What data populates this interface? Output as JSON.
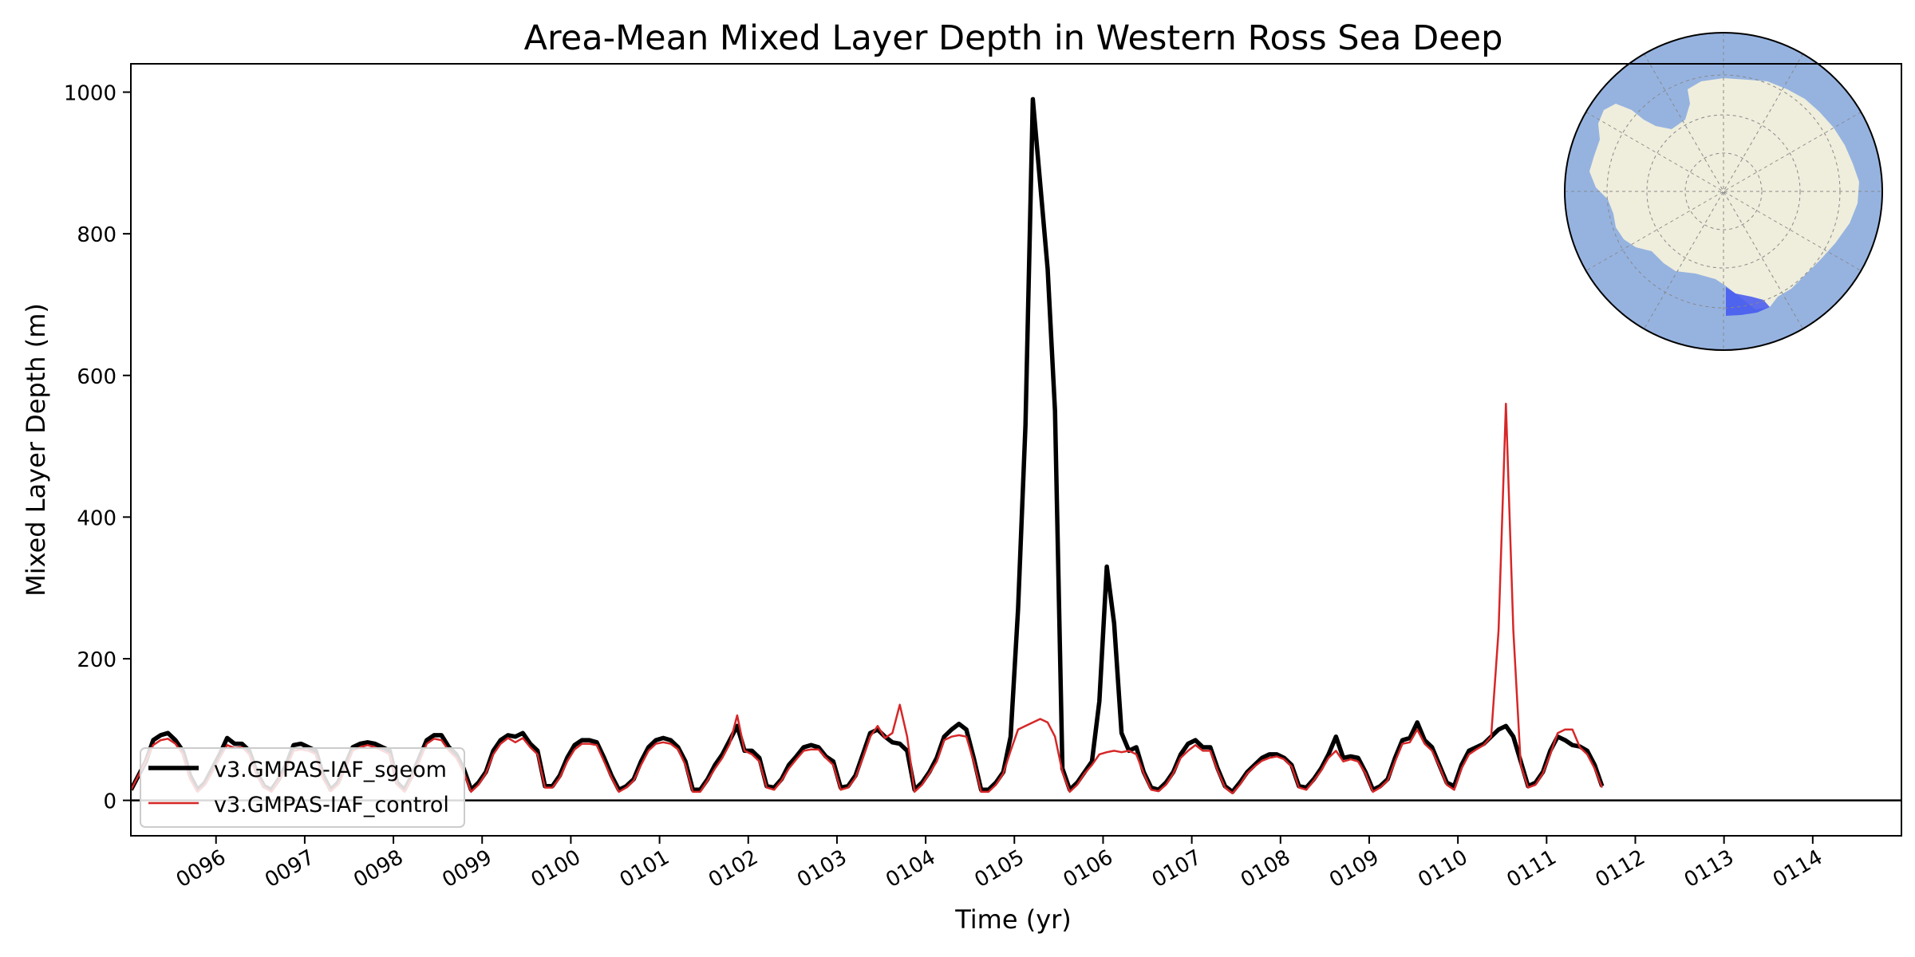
{
  "chart_data": {
    "type": "line",
    "title": "Area-Mean Mixed Layer Depth in Western Ross Sea Deep",
    "xlabel": "Time (yr)",
    "ylabel": "Mixed Layer Depth (m)",
    "xlim": [
      95.04,
      115.0
    ],
    "ylim": [
      -50,
      1040
    ],
    "x_ticks": [
      "0096",
      "0097",
      "0098",
      "0099",
      "0100",
      "0101",
      "0102",
      "0103",
      "0104",
      "0105",
      "0106",
      "0107",
      "0108",
      "0109",
      "0110",
      "0111",
      "0112",
      "0113",
      "0114"
    ],
    "y_ticks": [
      0,
      200,
      400,
      600,
      800,
      1000
    ],
    "zero_line": true,
    "legend_position": "lower-left",
    "inset": "polar map of Antarctica with the Western Ross Sea Deep region highlighted",
    "colors": {
      "ocean": "#96b3e0",
      "land": "#efeedc",
      "region": "#4255f0"
    },
    "series": [
      {
        "name": "v3.GMPAS-IAF_sgeom",
        "color": "#000000",
        "x_start": 95.042,
        "x_step": 0.08333,
        "values": [
          15,
          35,
          55,
          85,
          92,
          95,
          85,
          70,
          35,
          15,
          25,
          45,
          65,
          88,
          80,
          80,
          70,
          40,
          20,
          15,
          30,
          50,
          78,
          80,
          75,
          70,
          35,
          15,
          25,
          50,
          75,
          80,
          82,
          80,
          75,
          70,
          25,
          15,
          35,
          60,
          85,
          92,
          92,
          75,
          65,
          45,
          15,
          25,
          40,
          70,
          85,
          92,
          90,
          95,
          80,
          70,
          20,
          20,
          35,
          60,
          78,
          85,
          85,
          82,
          60,
          35,
          15,
          20,
          30,
          55,
          75,
          85,
          88,
          85,
          75,
          55,
          15,
          15,
          30,
          50,
          65,
          85,
          105,
          70,
          70,
          60,
          20,
          18,
          30,
          50,
          62,
          75,
          78,
          75,
          62,
          55,
          18,
          20,
          35,
          65,
          95,
          100,
          90,
          82,
          80,
          70,
          15,
          25,
          40,
          60,
          90,
          100,
          108,
          100,
          60,
          15,
          15,
          25,
          40,
          90,
          270,
          530,
          990,
          870,
          750,
          550,
          45,
          15,
          25,
          40,
          55,
          140,
          330,
          250,
          95,
          70,
          75,
          40,
          18,
          15,
          25,
          40,
          65,
          80,
          85,
          75,
          75,
          45,
          20,
          12,
          25,
          40,
          50,
          60,
          65,
          65,
          60,
          50,
          20,
          18,
          30,
          45,
          65,
          90,
          60,
          62,
          60,
          40,
          15,
          20,
          30,
          60,
          85,
          88,
          110,
          85,
          75,
          50,
          25,
          20,
          50,
          70,
          75,
          80,
          90,
          100,
          105,
          90,
          55,
          20,
          25,
          40,
          70,
          90,
          85,
          78,
          76,
          70,
          50,
          20
        ]
      },
      {
        "name": "v3.GMPAS-IAF_control",
        "color": "#d62728",
        "x_start": 95.042,
        "x_step": 0.08333,
        "values": [
          15,
          35,
          55,
          78,
          85,
          87,
          80,
          65,
          30,
          12,
          22,
          40,
          60,
          78,
          74,
          75,
          65,
          35,
          18,
          12,
          28,
          45,
          70,
          72,
          70,
          65,
          30,
          13,
          22,
          45,
          70,
          75,
          78,
          75,
          70,
          65,
          22,
          12,
          32,
          55,
          80,
          87,
          85,
          70,
          60,
          40,
          12,
          22,
          38,
          65,
          80,
          88,
          82,
          88,
          75,
          65,
          18,
          18,
          32,
          55,
          72,
          80,
          80,
          78,
          55,
          32,
          12,
          18,
          28,
          50,
          70,
          80,
          82,
          80,
          72,
          50,
          12,
          12,
          28,
          45,
          60,
          80,
          120,
          70,
          65,
          55,
          18,
          15,
          28,
          45,
          58,
          70,
          72,
          72,
          60,
          50,
          15,
          18,
          32,
          60,
          90,
          105,
          88,
          95,
          135,
          90,
          12,
          22,
          38,
          55,
          85,
          90,
          92,
          90,
          55,
          12,
          12,
          22,
          38,
          70,
          100,
          105,
          110,
          115,
          110,
          90,
          40,
          12,
          22,
          38,
          50,
          65,
          68,
          70,
          68,
          70,
          65,
          38,
          15,
          13,
          22,
          38,
          60,
          70,
          78,
          70,
          70,
          42,
          18,
          10,
          22,
          38,
          48,
          56,
          60,
          62,
          58,
          48,
          18,
          15,
          28,
          42,
          60,
          70,
          55,
          58,
          55,
          38,
          12,
          18,
          28,
          55,
          80,
          82,
          100,
          80,
          70,
          48,
          22,
          15,
          45,
          65,
          72,
          78,
          90,
          240,
          560,
          240,
          50,
          18,
          22,
          38,
          65,
          95,
          100,
          100,
          75,
          65,
          45,
          18
        ]
      }
    ]
  }
}
